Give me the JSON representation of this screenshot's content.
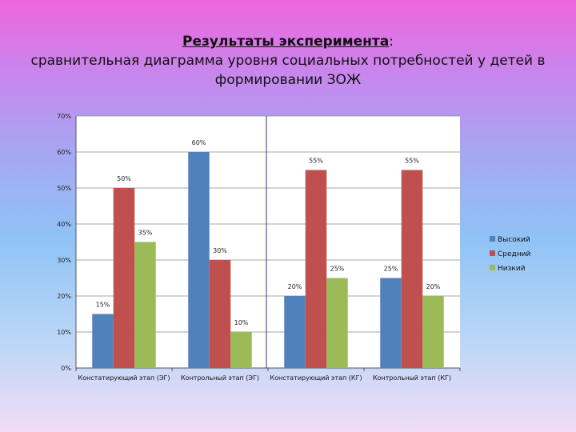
{
  "title": {
    "main": "Результаты эксперимента",
    "colon": ":",
    "line2": "сравнительная диаграмма уровня социальных потребностей у детей в",
    "line3": "формировании ЗОЖ"
  },
  "colors": {
    "high": "#4f81bd",
    "medium": "#c0504d",
    "low": "#9bbb59"
  },
  "chart_data": {
    "type": "bar",
    "categories": [
      "Констатирующий этап (ЭГ)",
      "Контрольный этап (ЭГ)",
      "Констатирующий этап (КГ)",
      "Контрольный этап (КГ)"
    ],
    "series": [
      {
        "name": "Высокий",
        "values": [
          15,
          60,
          20,
          25
        ],
        "labels": [
          "15%",
          "60%",
          "20%",
          "25%"
        ]
      },
      {
        "name": "Средний",
        "values": [
          50,
          30,
          55,
          55
        ],
        "labels": [
          "50%",
          "30%",
          "55%",
          "55%"
        ]
      },
      {
        "name": "Низкий",
        "values": [
          35,
          10,
          25,
          20
        ],
        "labels": [
          "35%",
          "10%",
          "25%",
          "20%"
        ]
      }
    ],
    "yticks": [
      "0%",
      "10%",
      "20%",
      "30%",
      "40%",
      "50%",
      "60%",
      "70%"
    ],
    "ylim": [
      0,
      70
    ],
    "grid": true,
    "legend": "right"
  }
}
